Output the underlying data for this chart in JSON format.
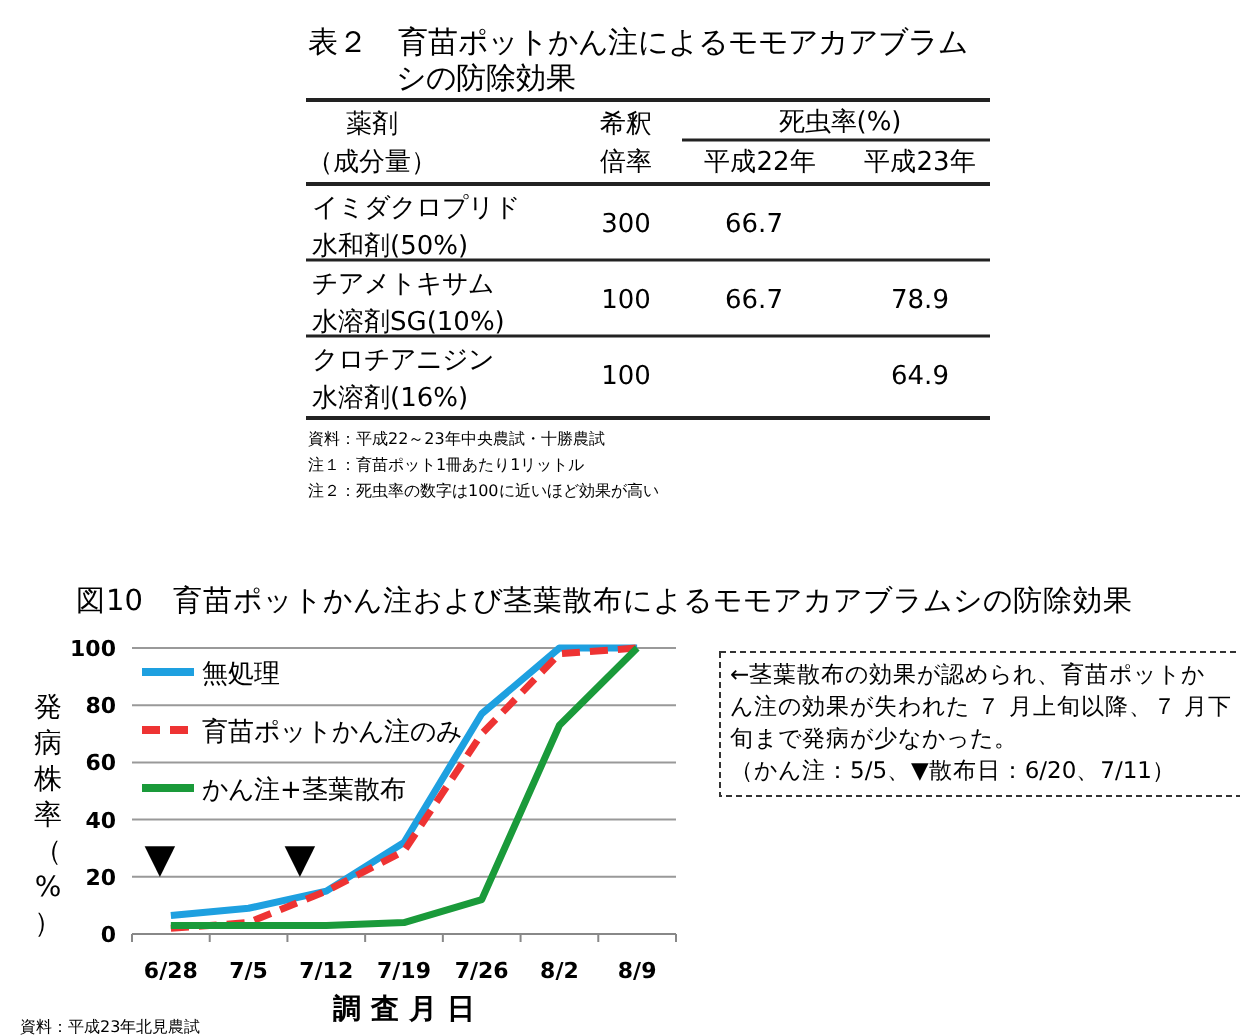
{
  "chart_data": [
    {
      "type": "heatmap",
      "title": "表２　育苗ポットかん注によるモモアカアブラムシの防除効果",
      "categories": [
        "希釈倍率",
        "平成22年",
        "平成23年"
      ],
      "y_categories": [
        "イミダクロプリド水和剤(50%)",
        "チアメトキサム水溶剤SG(10%)",
        "クロチアニジン水溶剤(16%)"
      ],
      "cells": [
        [
          300,
          66.7,
          null
        ],
        [
          100,
          66.7,
          78.9
        ],
        [
          100,
          null,
          64.9
        ]
      ],
      "data_labels": true,
      "annotations": [
        "薬剤（成分量）",
        "死虫率(%)",
        "資料：平成22～23年中央農試・十勝農試",
        "注１：育苗ポット1冊あたり1リットル",
        "注２：死虫率の数字は100に近いほど効果が高い"
      ]
    },
    {
      "type": "line",
      "title": "図10　育苗ポットかん注および茎葉散布によるモモアカアブラムシの防除効果",
      "xlabel": "調 査 月 日",
      "ylabel": "発病株率（%）",
      "categories": [
        "6/28",
        "7/5",
        "7/12",
        "7/19",
        "7/26",
        "8/2",
        "8/9"
      ],
      "ylim": [
        0,
        100
      ],
      "yticks": [
        0,
        20,
        40,
        60,
        80,
        100
      ],
      "grid": "y",
      "legend": "top left",
      "series": [
        {
          "name": "無処理",
          "color": "#1ea0e0",
          "values": [
            6.5,
            9,
            15,
            32,
            77,
            100,
            100
          ]
        },
        {
          "name": "育苗ポットかん注のみ",
          "color": "#ee3333",
          "line_style": "dashed",
          "values": [
            2,
            4,
            15,
            29,
            70,
            98,
            100
          ]
        },
        {
          "name": "かん注+茎葉散布",
          "color": "#1a9a3a",
          "values": [
            3,
            3,
            3,
            4,
            12,
            73,
            100
          ]
        }
      ],
      "annotations": [
        "▼",
        "▼",
        "←茎葉散布の効果が認められ、育苗ポットかん注の効果が失われた ７ 月上旬以降、７ 月下旬まで発病が少なかった。（かん注：5/5、▼散布日：6/20、7/11）",
        "資料：平成23年北見農試"
      ]
    }
  ]
}
